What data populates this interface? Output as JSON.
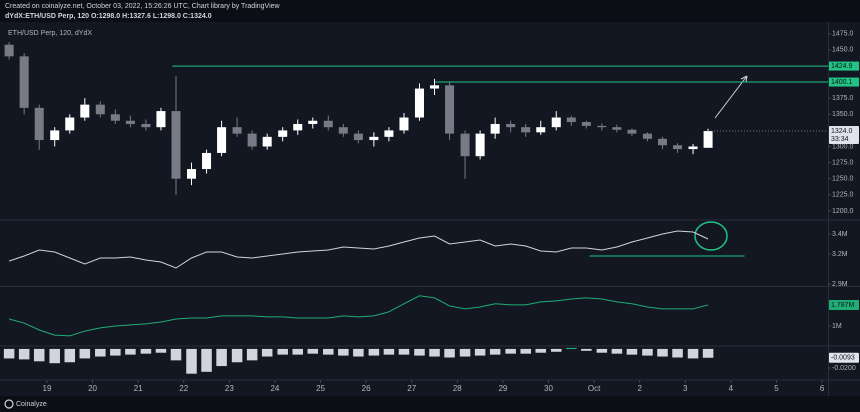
{
  "header": {
    "line1": "Created on coinalyze.net, October 03, 2022, 15:26:26 UTC, Chart library by TradingView",
    "line2": "dYdX:ETH/USD Perp, 120  O:1298.0 H:1327.6 L:1298.0 C:1324.0"
  },
  "footer": "Coinalyze",
  "time": {
    "x": [
      18.17,
      18.5,
      18.83,
      19.17,
      19.5,
      19.83,
      20.17,
      20.5,
      20.83,
      21.17,
      21.5,
      21.83,
      22.17,
      22.5,
      22.83,
      23.17,
      23.5,
      23.83,
      24.17,
      24.5,
      24.83,
      25.17,
      25.5,
      25.83,
      26.17,
      26.5,
      26.83,
      27.17,
      27.5,
      27.83,
      28.17,
      28.5,
      28.83,
      29.17,
      29.5,
      29.83,
      30.17,
      30.5,
      30.83,
      31.17,
      31.5,
      31.83,
      32.17,
      32.5,
      32.83,
      33.17,
      33.5
    ],
    "xlim": [
      17.97,
      36.13
    ],
    "xticks": [
      19,
      20,
      21,
      22,
      23,
      24,
      25,
      26,
      27,
      28,
      29,
      30,
      {
        "value": 31,
        "label": "Oct"
      },
      {
        "value": 32,
        "label": "2"
      },
      {
        "value": 33,
        "label": "3"
      },
      {
        "value": 34,
        "label": "4"
      },
      {
        "value": 35,
        "label": "5"
      },
      {
        "value": 36,
        "label": "6"
      }
    ]
  },
  "chart_data": [
    {
      "type": "candlestick",
      "title": "ETH/USD Perp, 120, dYdX",
      "up_color": "#ffffff",
      "down_color": "#787b86",
      "open": [
        1458,
        1440,
        1360,
        1310,
        1325,
        1345,
        1365,
        1350,
        1340,
        1335,
        1330,
        1355,
        1250,
        1265,
        1290,
        1330,
        1320,
        1300,
        1315,
        1325,
        1335,
        1340,
        1330,
        1320,
        1310,
        1315,
        1325,
        1345,
        1390,
        1395,
        1320,
        1285,
        1320,
        1335,
        1330,
        1322,
        1330,
        1345,
        1338,
        1332,
        1330,
        1326,
        1320,
        1312,
        1302,
        1296,
        1298
      ],
      "high": [
        1462,
        1445,
        1365,
        1330,
        1350,
        1375,
        1370,
        1358,
        1348,
        1342,
        1360,
        1410,
        1275,
        1295,
        1340,
        1345,
        1325,
        1320,
        1330,
        1342,
        1345,
        1348,
        1335,
        1325,
        1322,
        1330,
        1352,
        1398,
        1405,
        1400,
        1325,
        1325,
        1345,
        1340,
        1335,
        1340,
        1355,
        1348,
        1340,
        1336,
        1334,
        1328,
        1322,
        1315,
        1305,
        1304,
        1327.6
      ],
      "low": [
        1435,
        1350,
        1295,
        1300,
        1320,
        1340,
        1345,
        1335,
        1330,
        1325,
        1325,
        1225,
        1240,
        1258,
        1285,
        1315,
        1295,
        1295,
        1308,
        1318,
        1328,
        1325,
        1315,
        1305,
        1300,
        1308,
        1320,
        1340,
        1380,
        1310,
        1250,
        1280,
        1312,
        1322,
        1315,
        1318,
        1325,
        1332,
        1328,
        1325,
        1322,
        1316,
        1308,
        1296,
        1290,
        1288,
        1298
      ],
      "close": [
        1440,
        1360,
        1310,
        1325,
        1345,
        1365,
        1350,
        1340,
        1335,
        1330,
        1355,
        1250,
        1265,
        1290,
        1330,
        1320,
        1300,
        1315,
        1325,
        1335,
        1340,
        1330,
        1320,
        1310,
        1315,
        1325,
        1345,
        1390,
        1395,
        1320,
        1285,
        1320,
        1335,
        1330,
        1322,
        1330,
        1345,
        1338,
        1332,
        1330,
        1326,
        1320,
        1312,
        1302,
        1296,
        1300,
        1324
      ],
      "last_label": "1324.0",
      "countdown": "33:34",
      "ylim": [
        1189,
        1484
      ],
      "yticks": [
        {
          "value": 1475,
          "label": "1475.0"
        },
        {
          "value": 1450,
          "label": "1450.0"
        },
        {
          "value": 1425,
          "label": "1425.0"
        },
        {
          "value": 1375,
          "label": "1375.0"
        },
        {
          "value": 1350,
          "label": "1350.0"
        },
        {
          "value": 1300,
          "label": "1300.0"
        },
        {
          "value": 1275,
          "label": "1275.0"
        },
        {
          "value": 1250,
          "label": "1250.0"
        },
        {
          "value": 1225,
          "label": "1225.0"
        },
        {
          "value": 1200,
          "label": "1200.0"
        }
      ],
      "levels": [
        {
          "value": 1424.9,
          "x": 21.75,
          "color": "#22c486"
        },
        {
          "value": 1400.1,
          "x": 27.5,
          "color": "#22c486"
        }
      ]
    },
    {
      "type": "line",
      "color": "#d1d4dc",
      "values": [
        3130000,
        3180000,
        3240000,
        3220000,
        3160000,
        3100000,
        3160000,
        3160000,
        3170000,
        3140000,
        3120000,
        3060000,
        3160000,
        3220000,
        3220000,
        3170000,
        3160000,
        3180000,
        3200000,
        3220000,
        3230000,
        3240000,
        3270000,
        3260000,
        3250000,
        3280000,
        3320000,
        3360000,
        3380000,
        3300000,
        3320000,
        3340000,
        3280000,
        3300000,
        3280000,
        3230000,
        3220000,
        3260000,
        3260000,
        3240000,
        3270000,
        3320000,
        3360000,
        3400000,
        3430000,
        3420000,
        3350000
      ],
      "ylim": [
        2890000,
        3520000
      ],
      "yticks": [
        {
          "value": 3400000,
          "label": "3.4M"
        },
        {
          "value": 3200000,
          "label": "3.2M"
        },
        {
          "value": 2900000,
          "label": "2.9M"
        }
      ],
      "levels": [
        {
          "value": 3180000,
          "x": 30.9,
          "x_end": 34.3,
          "color": "#22c486"
        }
      ]
    },
    {
      "type": "line",
      "color": "#1fae74",
      "values": [
        1260000,
        1110000,
        850000,
        660000,
        630000,
        810000,
        930000,
        1000000,
        1040000,
        1080000,
        1150000,
        1260000,
        1300000,
        1300000,
        1380000,
        1380000,
        1380000,
        1340000,
        1340000,
        1300000,
        1300000,
        1300000,
        1380000,
        1340000,
        1380000,
        1530000,
        1830000,
        2130000,
        2050000,
        1750000,
        1640000,
        1710000,
        1830000,
        1790000,
        1790000,
        1900000,
        1940000,
        2010000,
        2050000,
        2010000,
        1900000,
        1830000,
        1710000,
        1640000,
        1640000,
        1640000,
        1787000
      ],
      "last_label": "1.787M",
      "ylim": [
        290000,
        2420000
      ],
      "yticks": [
        {
          "value": 1000000,
          "label": "1M"
        }
      ]
    },
    {
      "type": "bar",
      "up_color": "#22c486",
      "down_color": "#d1d4dc",
      "values": [
        -0.01,
        -0.011,
        -0.013,
        -0.015,
        -0.014,
        -0.01,
        -0.008,
        -0.007,
        -0.006,
        -0.005,
        -0.004,
        -0.012,
        -0.026,
        -0.024,
        -0.018,
        -0.014,
        -0.012,
        -0.008,
        -0.006,
        -0.006,
        -0.005,
        -0.006,
        -0.007,
        -0.008,
        -0.007,
        -0.006,
        -0.006,
        -0.007,
        -0.008,
        -0.009,
        -0.008,
        -0.007,
        -0.006,
        -0.005,
        -0.005,
        -0.004,
        -0.003,
        0.001,
        -0.002,
        -0.004,
        -0.005,
        -0.006,
        -0.007,
        -0.008,
        -0.009,
        -0.01,
        -0.0093
      ],
      "last_label": "-0.0093",
      "ylim": [
        -0.0305,
        0.002
      ],
      "yticks": [
        {
          "value": -0.02,
          "label": "-0.0200"
        }
      ]
    }
  ]
}
